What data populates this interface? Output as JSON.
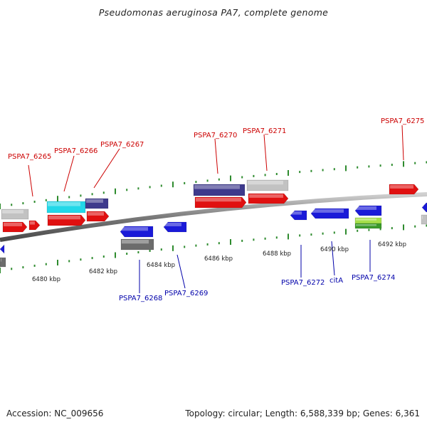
{
  "title": "Pseudomonas aeruginosa PA7, complete genome",
  "footer": {
    "accession": "Accession: NC_009656",
    "topology": "Topology: circular; Length: 6,588,339 bp; Genes: 6,361"
  },
  "colors": {
    "forward_label": "#cc0000",
    "reverse_label": "#0000aa",
    "backbone": "#7a7a7a",
    "ticks": "#2e8b2e"
  },
  "scale": {
    "unit": "kbp",
    "labels": [
      "6480 kbp",
      "6482 kbp",
      "6484 kbp",
      "6486 kbp",
      "6488 kbp",
      "6490 kbp",
      "6492 kbp"
    ]
  },
  "gene_labels": {
    "forward": [
      "PSPA7_6265",
      "PSPA7_6266",
      "PSPA7_6267",
      "PSPA7_6270",
      "PSPA7_6271",
      "PSPA7_6275"
    ],
    "reverse": [
      "PSPA7_6268",
      "PSPA7_6269",
      "PSPA7_6272",
      "citA",
      "PSPA7_6274"
    ]
  },
  "track_colors": {
    "red": "#e01010",
    "blue": "#1a1ad8",
    "cyan": "#22d8e8",
    "indigo": "#3e3a8c",
    "light_gray": "#c2c2c2",
    "dark_gray": "#6c6c6c",
    "lime": "#a6e04a",
    "green": "#3a9a2a"
  }
}
